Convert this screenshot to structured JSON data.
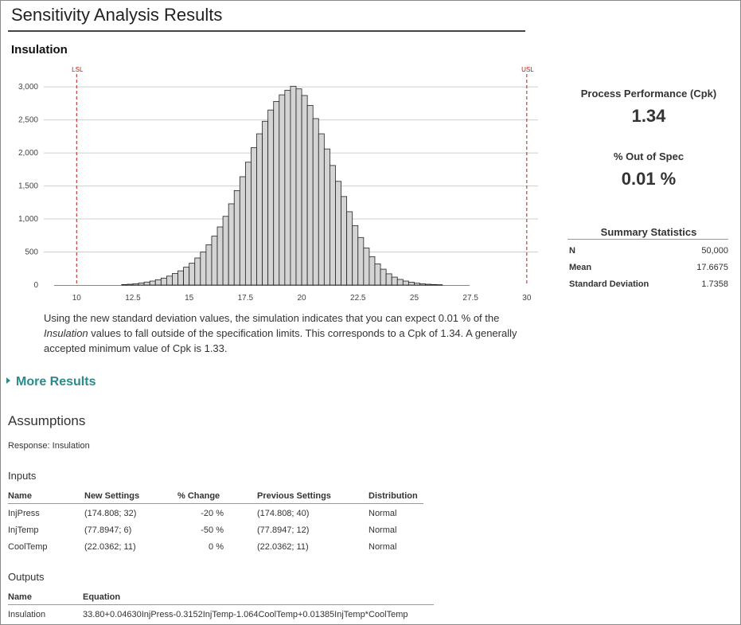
{
  "page_title": "Sensitivity Analysis Results",
  "chart_data": {
    "type": "bar",
    "title": "Insulation",
    "x_ticks": [
      "10",
      "12.5",
      "15",
      "17.5",
      "20",
      "22.5",
      "25",
      "27.5",
      "30"
    ],
    "y_ticks": [
      "0",
      "500",
      "1,000",
      "1,500",
      "2,000",
      "2,500",
      "3,000"
    ],
    "xlim": [
      9.0,
      30.5
    ],
    "ylim": [
      0,
      3050
    ],
    "bin_start": 12.0,
    "bin_width": 0.25,
    "values": [
      8,
      12,
      20,
      30,
      45,
      60,
      80,
      105,
      135,
      175,
      215,
      270,
      330,
      410,
      500,
      610,
      740,
      880,
      1040,
      1230,
      1430,
      1640,
      1860,
      2080,
      2290,
      2480,
      2650,
      2780,
      2880,
      2950,
      3010,
      2970,
      2870,
      2720,
      2520,
      2290,
      2060,
      1810,
      1570,
      1340,
      1110,
      900,
      720,
      560,
      430,
      320,
      240,
      170,
      120,
      85,
      60,
      42,
      28,
      18,
      12,
      8,
      5
    ],
    "lsl": {
      "label": "LSL",
      "value": 10
    },
    "usl": {
      "label": "USL",
      "value": 30
    },
    "bar_color": "#d4d4d4",
    "limit_color": "#b01c1c",
    "grid": true
  },
  "description": {
    "part1": "Using the new standard deviation values, the simulation indicates that you can expect 0.01 % of the",
    "italic": "Insulation",
    "part2": " values to fall outside of the specification limits. This corresponds to a Cpk of 1.34. A generally accepted minimum value of Cpk is 1.33."
  },
  "metrics": {
    "cpk_label": "Process Performance (Cpk)",
    "cpk_value": "1.34",
    "oos_label": "% Out of Spec",
    "oos_value": "0.01 %"
  },
  "summary": {
    "title": "Summary Statistics",
    "rows": [
      {
        "key": "N",
        "value": "50,000"
      },
      {
        "key": "Mean",
        "value": "17.6675"
      },
      {
        "key": "Standard Deviation",
        "value": "1.7358"
      }
    ]
  },
  "more_results": "More Results",
  "assumptions": {
    "title": "Assumptions",
    "response": "Response: Insulation",
    "inputs_title": "Inputs",
    "inputs_headers": [
      "Name",
      "New Settings",
      "% Change",
      "Previous Settings",
      "Distribution"
    ],
    "inputs_rows": [
      [
        "InjPress",
        "(174.808; 32)",
        "-20 %",
        "(174.808; 40)",
        "Normal"
      ],
      [
        "InjTemp",
        "(77.8947; 6)",
        "-50 %",
        "(77.8947; 12)",
        "Normal"
      ],
      [
        "CoolTemp",
        "(22.0362; 11)",
        "0 %",
        "(22.0362; 11)",
        "Normal"
      ]
    ],
    "outputs_title": "Outputs",
    "outputs_headers": [
      "Name",
      "Equation"
    ],
    "outputs_rows": [
      [
        "Insulation",
        "33.80+0.04630InjPress-0.3152InjTemp-1.064CoolTemp+0.01385InjTemp*CoolTemp"
      ]
    ]
  }
}
